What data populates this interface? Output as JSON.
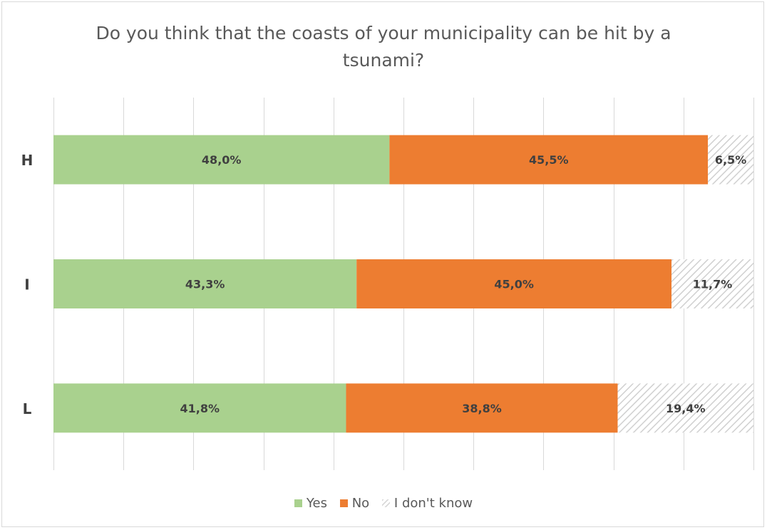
{
  "chart_data": {
    "type": "bar",
    "orientation": "horizontal",
    "stacked": true,
    "title": "Do you think that the coasts of your municipality can be hit by a tsunami?",
    "title_lines": [
      "Do you think that the coasts of your municipality can be hit by a",
      "tsunami?"
    ],
    "categories": [
      "H",
      "I",
      "L"
    ],
    "series": [
      {
        "name": "Yes",
        "values": [
          48.0,
          43.3,
          41.8
        ],
        "labels": [
          "48,0%",
          "43,3%",
          "41,8%"
        ],
        "color": "#a9d18e"
      },
      {
        "name": "No",
        "values": [
          45.5,
          45.0,
          38.8
        ],
        "labels": [
          "45,5%",
          "45,0%",
          "38,8%"
        ],
        "color": "#ed7d31"
      },
      {
        "name": "I don't know",
        "values": [
          6.5,
          11.7,
          19.4
        ],
        "labels": [
          "6,5%",
          "11,7%",
          "19,4%"
        ],
        "color": "#d9d9d9",
        "pattern": "diagonal-hatch"
      }
    ],
    "xlim": [
      0,
      100
    ],
    "grid": true,
    "vertical_gridlines": 10,
    "legend_position": "bottom"
  }
}
